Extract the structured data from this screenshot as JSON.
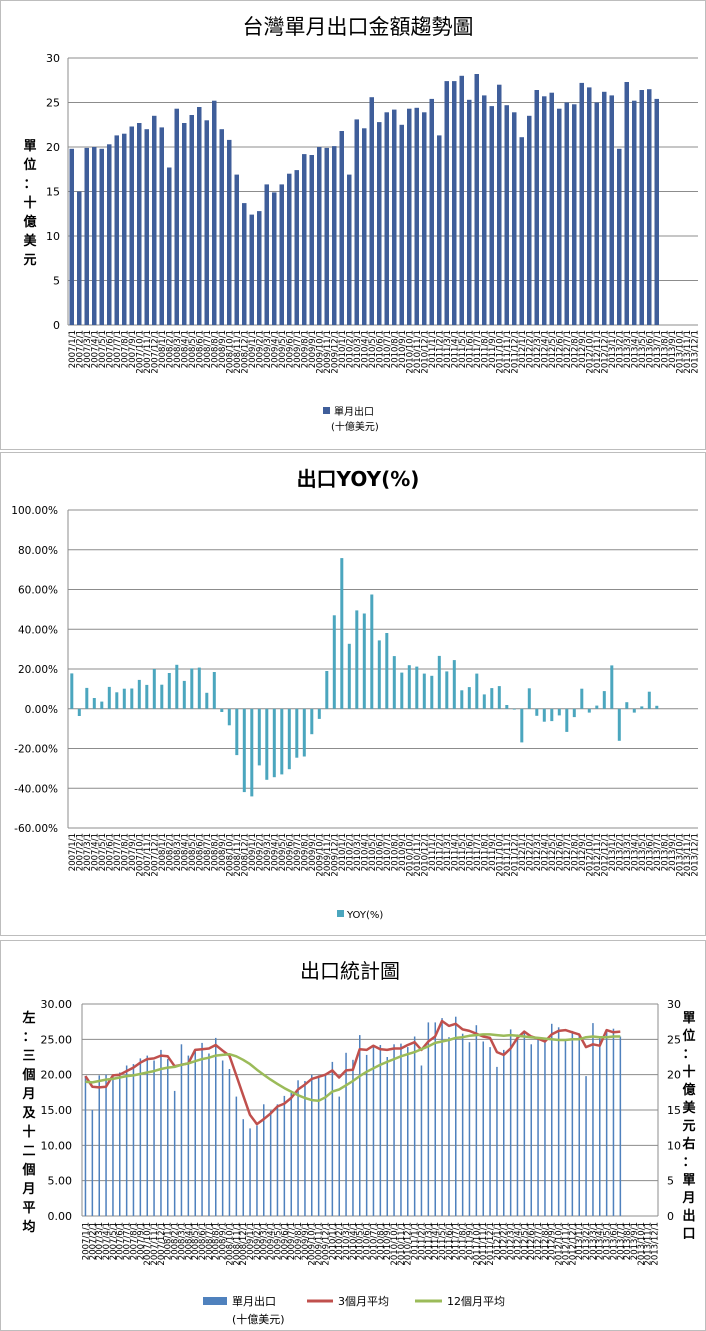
{
  "chart_data": [
    {
      "type": "bar",
      "title": "台灣單月出口金額趨勢圖",
      "ylabel": "單位：十億美元",
      "ylim": [
        0,
        30
      ],
      "yticks": [
        "0",
        "5",
        "10",
        "15",
        "20",
        "25",
        "30"
      ],
      "grid": true,
      "legend_position": "bottom",
      "x": [
        "2007/1/1",
        "2007/2/1",
        "2007/3/1",
        "2007/4/1",
        "2007/5/1",
        "2007/6/1",
        "2007/7/1",
        "2007/8/1",
        "2007/9/1",
        "2007/10/1",
        "2007/11/1",
        "2007/12/1",
        "2008/1/1",
        "2008/2/1",
        "2008/3/1",
        "2008/4/1",
        "2008/5/1",
        "2008/6/1",
        "2008/7/1",
        "2008/8/1",
        "2008/9/1",
        "2008/10/1",
        "2008/11/1",
        "2008/12/1",
        "2009/1/1",
        "2009/2/1",
        "2009/3/1",
        "2009/4/1",
        "2009/5/1",
        "2009/6/1",
        "2009/7/1",
        "2009/8/1",
        "2009/9/1",
        "2009/10/1",
        "2009/11/1",
        "2009/12/1",
        "2010/1/1",
        "2010/2/1",
        "2010/3/1",
        "2010/4/1",
        "2010/5/1",
        "2010/6/1",
        "2010/7/1",
        "2010/8/1",
        "2010/9/1",
        "2010/10/1",
        "2010/11/1",
        "2010/12/1",
        "2011/1/1",
        "2011/2/1",
        "2011/3/1",
        "2011/4/1",
        "2011/5/1",
        "2011/6/1",
        "2011/7/1",
        "2011/8/1",
        "2011/9/1",
        "2011/10/1",
        "2011/11/1",
        "2011/12/1",
        "2012/1/1",
        "2012/2/1",
        "2012/3/1",
        "2012/4/1",
        "2012/5/1",
        "2012/6/1",
        "2012/7/1",
        "2012/8/1",
        "2012/9/1",
        "2012/10/1",
        "2012/11/1",
        "2012/12/1",
        "2013/1/1",
        "2013/2/1",
        "2013/3/1",
        "2013/4/1",
        "2013/5/1",
        "2013/6/1",
        "2013/7/1",
        "2013/8/1",
        "2013/9/1",
        "2013/10/1",
        "2013/11/1",
        "2013/12/1"
      ],
      "series": [
        {
          "name": "單月出口(十億美元)",
          "color": "#3f5e9a",
          "values": [
            19.8,
            15.0,
            19.9,
            20.0,
            19.8,
            20.3,
            21.3,
            21.5,
            22.3,
            22.7,
            22.0,
            23.5,
            22.2,
            17.7,
            24.3,
            22.7,
            23.6,
            24.5,
            23.0,
            25.2,
            22.0,
            20.8,
            16.9,
            13.7,
            12.4,
            12.8,
            15.8,
            14.9,
            15.8,
            17.0,
            17.4,
            19.2,
            19.1,
            20.0,
            19.9,
            20.1,
            21.8,
            16.9,
            23.1,
            22.1,
            25.6,
            22.8,
            23.9,
            24.2,
            22.5,
            24.3,
            24.4,
            23.9,
            25.4,
            21.3,
            27.4,
            27.4,
            28.0,
            25.3,
            28.2,
            25.8,
            24.6,
            27.0,
            24.7,
            23.9,
            21.1,
            23.5,
            26.4,
            25.7,
            26.1,
            24.3,
            25.0,
            24.8,
            27.2,
            26.7,
            25.0,
            26.2,
            25.8,
            19.8,
            27.3,
            25.2,
            26.4,
            26.5,
            25.4,
            null,
            null,
            null,
            null,
            null
          ]
        }
      ]
    },
    {
      "type": "bar",
      "title": "出口YOY(%)",
      "ylim": [
        -60,
        100
      ],
      "yticks": [
        "-60.00%",
        "-40.00%",
        "-20.00%",
        "0.00%",
        "20.00%",
        "40.00%",
        "60.00%",
        "80.00%",
        "100.00%"
      ],
      "grid": true,
      "legend_position": "bottom",
      "x_ref": "same as chart 1",
      "series": [
        {
          "name": "YOY(%)",
          "color": "#4ba6be",
          "values": [
            17.8,
            -3.6,
            10.5,
            5.4,
            3.6,
            11.0,
            8.3,
            10.1,
            10.2,
            14.5,
            12.0,
            20.0,
            12.1,
            18.0,
            22.1,
            14.0,
            20.3,
            20.7,
            8.0,
            18.5,
            -1.6,
            -8.3,
            -23.3,
            -41.9,
            -44.1,
            -28.5,
            -35.7,
            -34.4,
            -33.0,
            -30.4,
            -24.6,
            -24.0,
            -12.8,
            -5.1,
            19.0,
            47.0,
            75.8,
            32.7,
            49.5,
            47.9,
            57.5,
            34.4,
            38.1,
            26.5,
            18.2,
            21.9,
            21.2,
            17.7,
            16.6,
            26.6,
            18.8,
            24.5,
            9.3,
            10.9,
            17.7,
            7.2,
            10.4,
            11.4,
            1.9,
            0.0,
            -16.9,
            10.3,
            -3.5,
            -6.5,
            -6.2,
            -3.3,
            -11.6,
            -4.2,
            10.1,
            -1.9,
            1.6,
            8.9,
            21.8,
            -16.1,
            3.3,
            -1.9,
            1.2,
            8.6,
            1.5,
            null,
            null,
            null,
            null,
            null
          ]
        }
      ]
    },
    {
      "type": "line",
      "title": "出口統計圖",
      "ylabel_left": "左：三個月及十二個月平均",
      "ylabel_right": "單位：十億美元右：單月出口",
      "ylim_left": [
        0,
        30
      ],
      "ylim_right": [
        0,
        30
      ],
      "yticks_left": [
        "0.00",
        "5.00",
        "10.00",
        "15.00",
        "20.00",
        "25.00",
        "30.00"
      ],
      "yticks_right": [
        "0",
        "5",
        "10",
        "15",
        "20",
        "25",
        "30"
      ],
      "grid": true,
      "legend_position": "bottom",
      "x_ref": "same as chart 1",
      "series": [
        {
          "name": "單月出口(十億美元)",
          "type": "bar",
          "color": "#4f81bd",
          "axis": "right",
          "values_ref": "chart 1"
        },
        {
          "name": "3個月平均",
          "type": "line",
          "color": "#c0504d",
          "axis": "left",
          "values": [
            19.8,
            18.3,
            18.2,
            18.3,
            19.9,
            20.0,
            20.5,
            21.0,
            21.7,
            22.2,
            22.3,
            22.7,
            22.6,
            21.2,
            21.4,
            21.6,
            23.5,
            23.6,
            23.7,
            24.2,
            23.4,
            22.7,
            19.9,
            17.1,
            14.3,
            13.0,
            13.7,
            14.5,
            15.5,
            15.9,
            16.7,
            17.9,
            18.6,
            19.4,
            19.7,
            20.0,
            20.6,
            19.6,
            20.6,
            20.7,
            23.6,
            23.5,
            24.1,
            23.6,
            23.5,
            23.7,
            23.7,
            24.2,
            24.6,
            23.5,
            24.7,
            25.4,
            27.6,
            26.9,
            27.2,
            26.4,
            26.2,
            25.8,
            25.4,
            25.2,
            23.2,
            22.8,
            23.7,
            25.2,
            26.1,
            25.4,
            25.1,
            24.7,
            25.7,
            26.2,
            26.3,
            26.0,
            25.7,
            23.9,
            24.3,
            24.1,
            26.3,
            26.0,
            26.1,
            null,
            null,
            null,
            null,
            null
          ]
        },
        {
          "name": "12個月平均",
          "type": "line",
          "color": "#9bbb59",
          "axis": "left",
          "values": [
            19.0,
            18.9,
            19.1,
            19.3,
            19.4,
            19.6,
            19.8,
            19.9,
            20.1,
            20.3,
            20.5,
            20.8,
            21.0,
            21.1,
            21.4,
            21.6,
            21.9,
            22.2,
            22.4,
            22.7,
            22.8,
            22.9,
            22.6,
            22.1,
            21.5,
            20.7,
            20.0,
            19.3,
            18.7,
            18.1,
            17.6,
            17.1,
            16.7,
            16.4,
            16.3,
            16.8,
            17.6,
            17.9,
            18.5,
            19.1,
            19.8,
            20.4,
            20.9,
            21.4,
            21.8,
            22.2,
            22.6,
            22.9,
            23.2,
            23.6,
            24.0,
            24.5,
            24.7,
            24.9,
            25.2,
            25.3,
            25.5,
            25.6,
            25.7,
            25.7,
            25.6,
            25.5,
            25.6,
            25.5,
            25.4,
            25.3,
            25.2,
            25.1,
            25.0,
            24.9,
            24.9,
            25.0,
            25.0,
            25.3,
            25.4,
            25.3,
            25.3,
            25.4,
            25.4,
            null,
            null,
            null,
            null,
            null
          ]
        }
      ]
    }
  ]
}
